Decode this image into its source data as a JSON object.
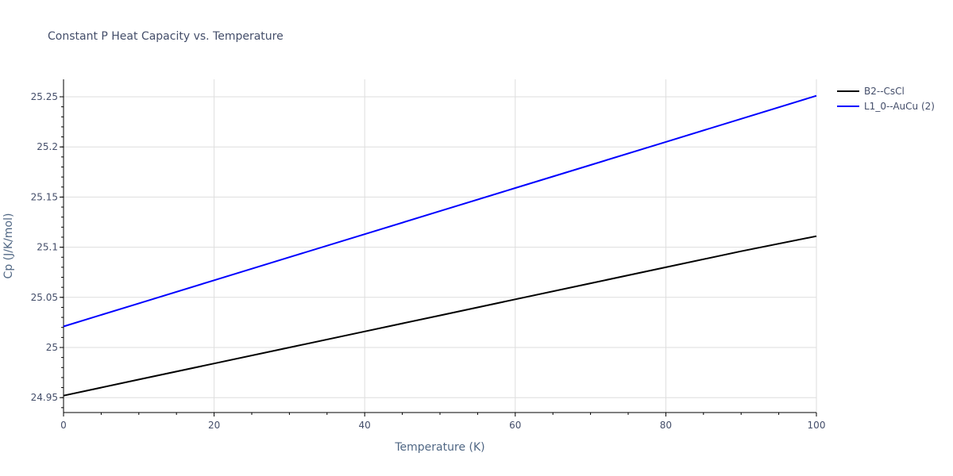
{
  "chart_data": {
    "type": "line",
    "title": "Constant P Heat Capacity vs. Temperature",
    "xlabel": "Temperature (K)",
    "ylabel": "Cp (J/K/mol)",
    "xlim": [
      0,
      100
    ],
    "ylim": [
      24.935,
      25.267
    ],
    "xticks": [
      0,
      20,
      40,
      60,
      80,
      100
    ],
    "yticks": [
      24.95,
      25,
      25.05,
      25.1,
      25.15,
      25.2,
      25.25
    ],
    "ytick_labels": [
      "24.95",
      "25",
      "25.05",
      "25.1",
      "25.15",
      "25.2",
      "25.25"
    ],
    "grid": true,
    "legend_position": "right-top",
    "x": [
      0,
      10,
      20,
      30,
      40,
      50,
      60,
      70,
      80,
      90,
      100
    ],
    "series": [
      {
        "name": "B2--CsCl",
        "color": "#000000",
        "values": [
          24.952,
          24.968,
          24.984,
          25.0,
          25.016,
          25.032,
          25.048,
          25.064,
          25.08,
          25.096,
          25.111
        ]
      },
      {
        "name": "L1_0--AuCu (2)",
        "color": "#0000ff",
        "values": [
          25.021,
          25.044,
          25.067,
          25.09,
          25.113,
          25.136,
          25.159,
          25.182,
          25.205,
          25.228,
          25.251
        ]
      }
    ]
  }
}
